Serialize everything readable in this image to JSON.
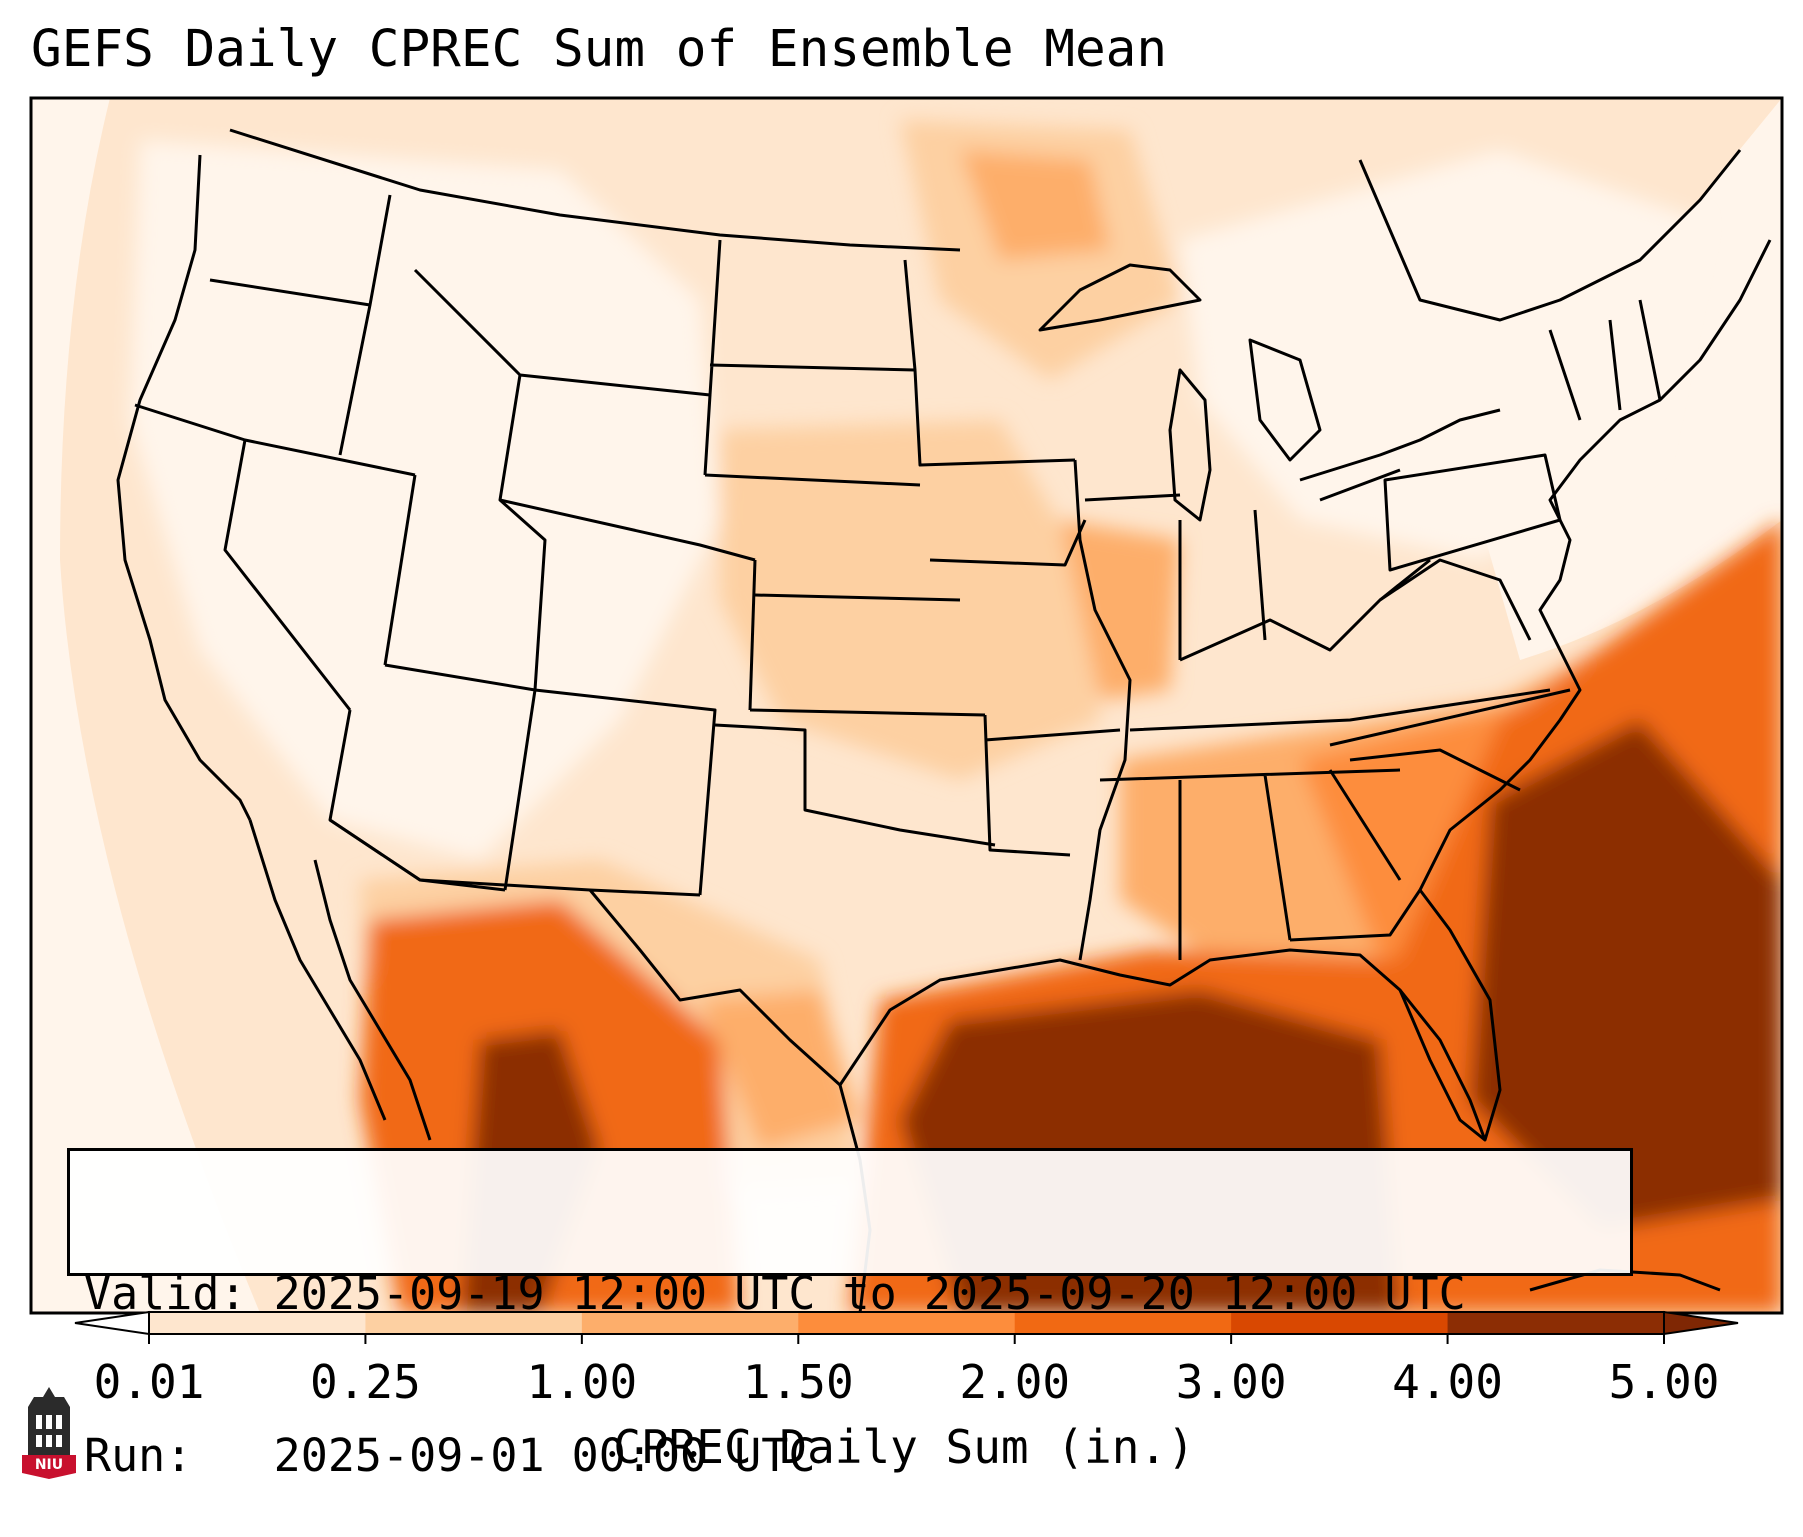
{
  "title": "GEFS Daily CPREC Sum of Ensemble Mean",
  "info": {
    "valid": "Valid: 2025-09-19 12:00 UTC to 2025-09-20 12:00 UTC",
    "run": "Run:   2025-09-01 00:00 UTC"
  },
  "colorbar": {
    "label": "CPREC Daily Sum (in.)",
    "ticks": [
      "0.01",
      "0.25",
      "1.00",
      "1.50",
      "2.00",
      "3.00",
      "4.00",
      "5.00"
    ],
    "colors": [
      "#fff5eb",
      "#fee6ce",
      "#fdd0a2",
      "#fdae6b",
      "#fd8d3c",
      "#f16913",
      "#d94801",
      "#8c2d04"
    ],
    "extend_min_color": "#ffffff",
    "extend_max_color": "#7f2704"
  },
  "logo": {
    "text": "NIU",
    "icon": "niu-tower-icon",
    "colors": {
      "tower": "#2b2b2b",
      "banner": "#c8102e"
    }
  },
  "map": {
    "features": [
      "state-boundaries",
      "coastlines",
      "country-borders"
    ],
    "regions": [
      {
        "name": "gulf-of-mexico",
        "level": 7
      },
      {
        "name": "atlantic-southeast-coast",
        "level": 7
      },
      {
        "name": "florida",
        "level": 6
      },
      {
        "name": "georgia-carolinas",
        "level": 5
      },
      {
        "name": "northern-mexico",
        "level": 6
      },
      {
        "name": "upper-midwest",
        "level": 4
      },
      {
        "name": "central-plains",
        "level": 3
      },
      {
        "name": "western-us",
        "level": 1
      },
      {
        "name": "northeast",
        "level": 1
      }
    ]
  }
}
